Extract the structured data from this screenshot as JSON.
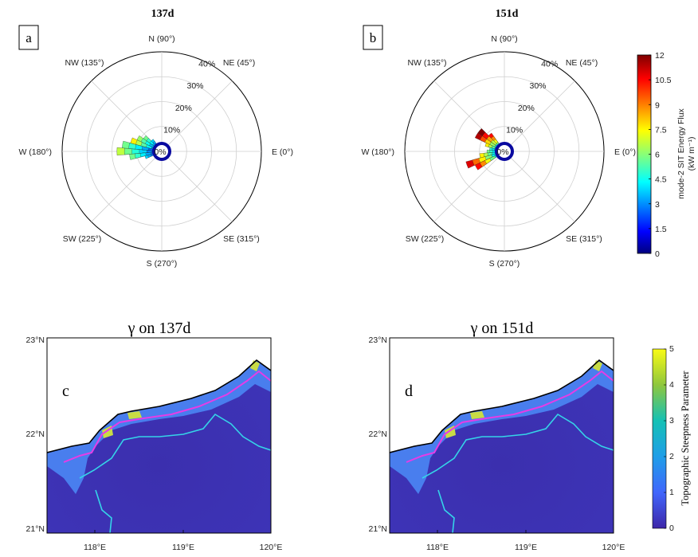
{
  "panels_top": [
    {
      "id": "a",
      "title": "137d",
      "letter": "a"
    },
    {
      "id": "b",
      "title": "151d",
      "letter": "b"
    }
  ],
  "polar": {
    "direction_labels": [
      "N (90°)",
      "NE (45°)",
      "E (0°)",
      "SE (315°)",
      "S (270°)",
      "SW (225°)",
      "W (180°)",
      "NW (135°)"
    ],
    "radial_ticks": [
      "0%",
      "10%",
      "20%",
      "30%",
      "40%"
    ]
  },
  "colorbar_top": {
    "label": "mode-2 SIT Energy Flux",
    "unit": "(kW m⁻¹)",
    "ticks": [
      "0",
      "1.5",
      "3",
      "4.5",
      "6",
      "7.5",
      "9",
      "10.5",
      "12"
    ]
  },
  "panels_bottom": [
    {
      "id": "c",
      "title": "γ on 137d",
      "letter": "c"
    },
    {
      "id": "d",
      "title": "γ on 151d",
      "letter": "d"
    }
  ],
  "map_axes": {
    "lat_ticks": [
      "23°N",
      "22°N",
      "21°N"
    ],
    "lon_ticks": [
      "118°E",
      "119°E",
      "120°E"
    ]
  },
  "colorbar_bottom": {
    "label": "Topographic Steepness Parameter",
    "ticks": [
      "0",
      "1",
      "2",
      "3",
      "4",
      "5"
    ]
  },
  "chart_data": [
    {
      "type": "rose",
      "title": "137d",
      "r_unit": "%",
      "rlim": [
        0,
        40
      ],
      "theta_convention": "E=0°, counterclockwise",
      "color_scale": [
        0,
        12
      ],
      "sectors": [
        {
          "theta": 180,
          "r": 18,
          "max_flux": 6
        },
        {
          "theta": 170,
          "r": 16,
          "max_flux": 5
        },
        {
          "theta": 160,
          "r": 13,
          "max_flux": 7
        },
        {
          "theta": 150,
          "r": 11,
          "max_flux": 5.5
        },
        {
          "theta": 140,
          "r": 9,
          "max_flux": 5
        },
        {
          "theta": 190,
          "r": 13,
          "max_flux": 5
        },
        {
          "theta": 200,
          "r": 7,
          "max_flux": 3
        },
        {
          "theta": 130,
          "r": 6,
          "max_flux": 3
        }
      ]
    },
    {
      "type": "rose",
      "title": "151d",
      "r_unit": "%",
      "rlim": [
        0,
        40
      ],
      "theta_convention": "E=0°, counterclockwise",
      "color_scale": [
        0,
        12
      ],
      "sectors": [
        {
          "theta": 140,
          "r": 13,
          "max_flux": 12
        },
        {
          "theta": 150,
          "r": 13,
          "max_flux": 11
        },
        {
          "theta": 130,
          "r": 9,
          "max_flux": 10
        },
        {
          "theta": 160,
          "r": 8,
          "max_flux": 7
        },
        {
          "theta": 200,
          "r": 16,
          "max_flux": 10.5
        },
        {
          "theta": 210,
          "r": 13,
          "max_flux": 10
        },
        {
          "theta": 190,
          "r": 10,
          "max_flux": 7
        },
        {
          "theta": 180,
          "r": 7,
          "max_flux": 5
        },
        {
          "theta": 170,
          "r": 6,
          "max_flux": 4
        }
      ]
    },
    {
      "type": "heatmap",
      "title": "γ on 137d",
      "x_range": [
        117.45,
        120.0
      ],
      "y_range": [
        20.9,
        23.0
      ],
      "color_scale": [
        0,
        5
      ],
      "xlabel": "",
      "ylabel": ""
    },
    {
      "type": "heatmap",
      "title": "γ on 151d",
      "x_range": [
        117.45,
        120.0
      ],
      "y_range": [
        20.9,
        23.0
      ],
      "color_scale": [
        0,
        5
      ],
      "xlabel": "",
      "ylabel": ""
    }
  ]
}
